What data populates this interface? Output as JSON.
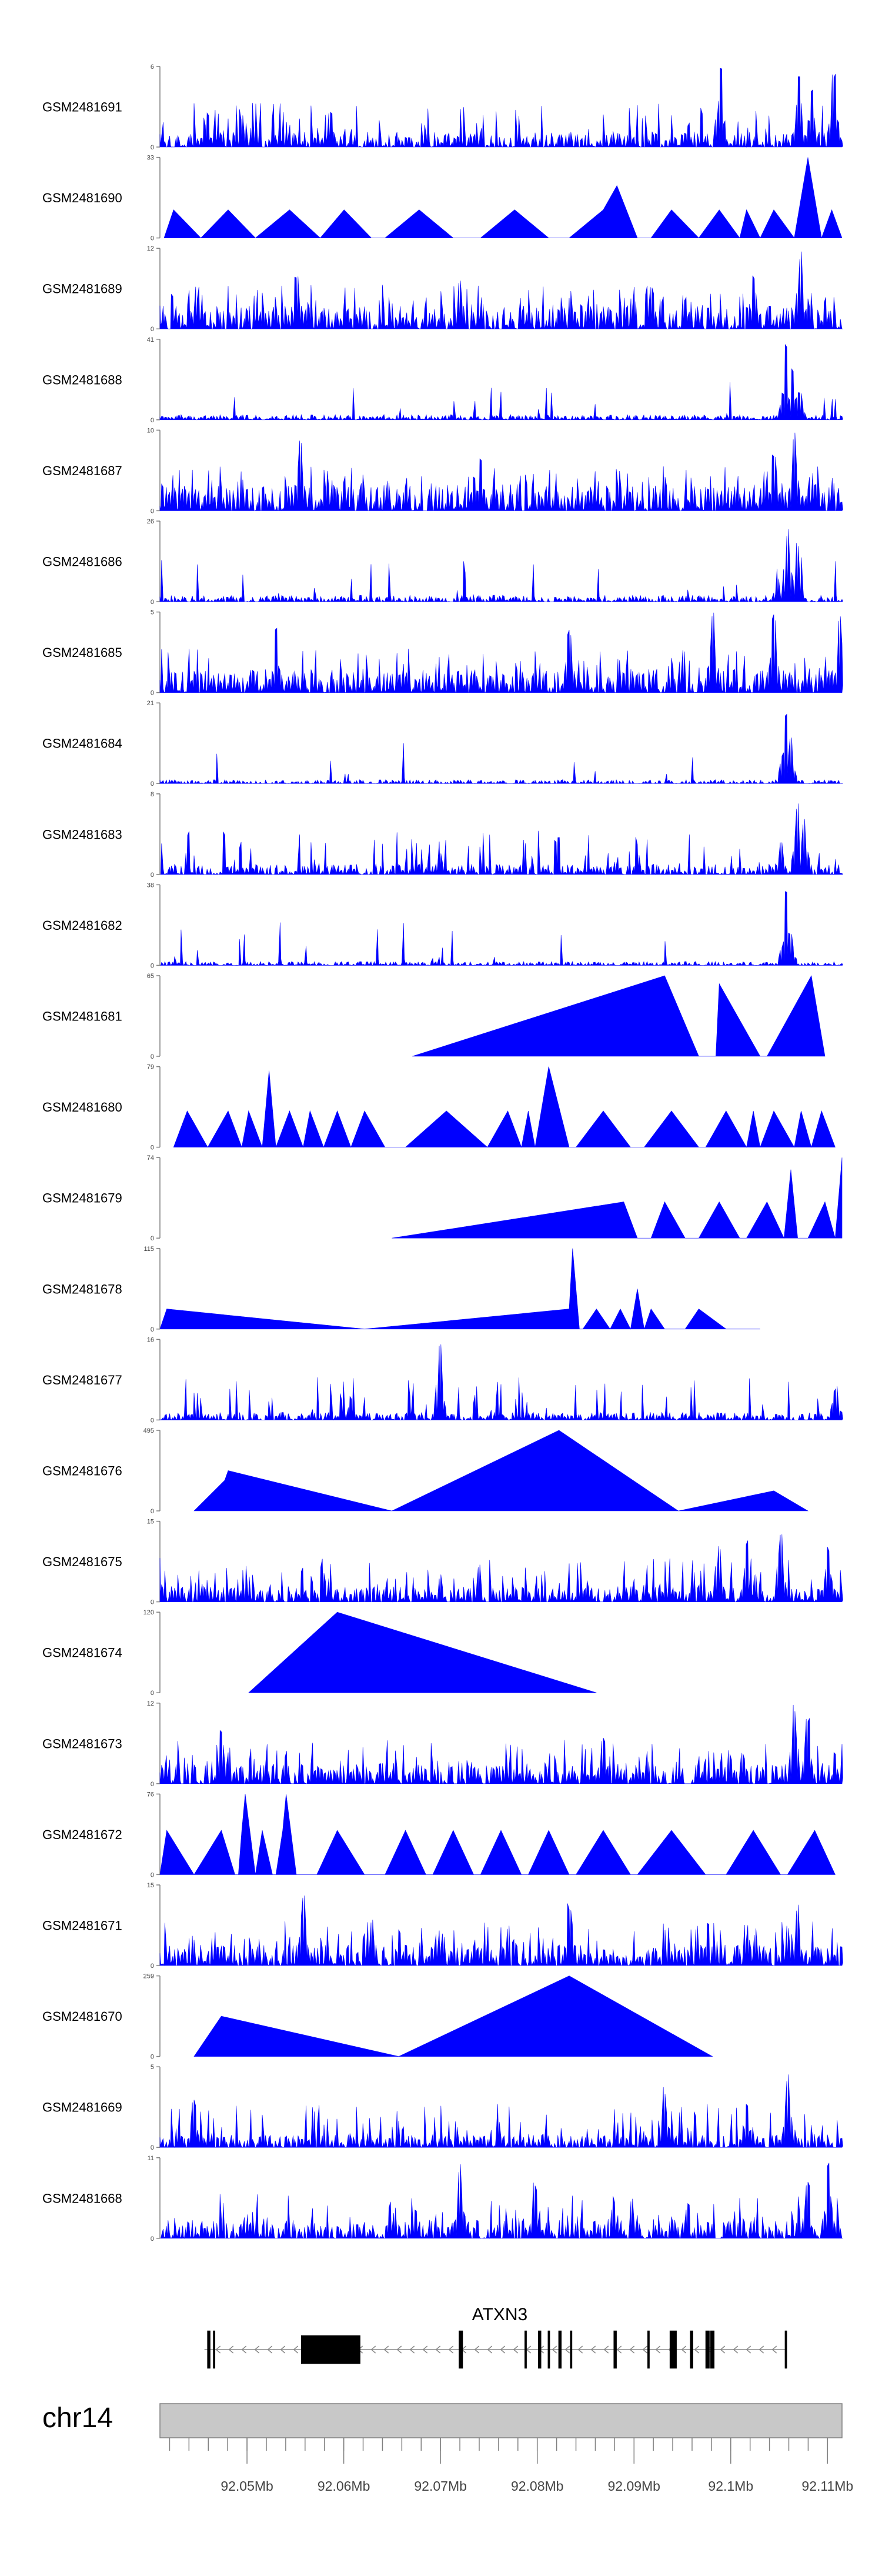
{
  "colors": {
    "track_fill": "#0000ff",
    "axis": "#808080",
    "gene": "#000000",
    "ideogram": "#c8c8c8"
  },
  "chart_data": {
    "type": "area",
    "title": "",
    "chromosome": "chr14",
    "xlabel": "",
    "ylabel": "",
    "xlim_mb": [
      92.041,
      92.1115
    ],
    "x_ticks_mb": [
      92.05,
      92.06,
      92.07,
      92.08,
      92.09,
      92.1,
      92.11
    ],
    "x_tick_labels": [
      "92.05Mb",
      "92.06Mb",
      "92.07Mb",
      "92.08Mb",
      "92.09Mb",
      "92.1Mb",
      "92.11Mb"
    ],
    "tracks": [
      {
        "name": "GSM2481691",
        "ymax_label": "6",
        "ymin_label": "0",
        "ymax": 6,
        "peaks": [
          [
            0.822,
            1.0
          ],
          [
            0.936,
            0.95
          ],
          [
            0.955,
            0.8
          ],
          [
            0.988,
            0.95
          ],
          [
            0.07,
            0.45
          ],
          [
            0.12,
            0.4
          ],
          [
            0.25,
            0.45
          ]
        ]
      },
      {
        "name": "GSM2481690",
        "ymax_label": "33",
        "ymin_label": "0",
        "ymax": 33,
        "peaks": [
          [
            0.95,
            1.0
          ],
          [
            0.673,
            0.65
          ],
          [
            0.86,
            0.35
          ]
        ]
      },
      {
        "name": "GSM2481689",
        "ymax_label": "12",
        "ymin_label": "0",
        "ymax": 12,
        "peaks": [
          [
            0.94,
            1.0
          ],
          [
            0.2,
            0.7
          ],
          [
            0.72,
            0.6
          ],
          [
            0.87,
            0.7
          ],
          [
            0.44,
            0.6
          ]
        ]
      },
      {
        "name": "GSM2481688",
        "ymax_label": "41",
        "ymin_label": "0",
        "ymax": 41,
        "peaks": [
          [
            0.917,
            0.95
          ],
          [
            0.928,
            0.7
          ],
          [
            0.938,
            0.35
          ]
        ]
      },
      {
        "name": "GSM2481687",
        "ymax_label": "10",
        "ymin_label": "0",
        "ymax": 10,
        "peaks": [
          [
            0.93,
            1.0
          ],
          [
            0.205,
            0.9
          ],
          [
            0.47,
            0.7
          ],
          [
            0.9,
            0.7
          ]
        ]
      },
      {
        "name": "GSM2481686",
        "ymax_label": "26",
        "ymin_label": "0",
        "ymax": 26,
        "peaks": [
          [
            0.92,
            0.95
          ],
          [
            0.935,
            0.75
          ],
          [
            0.905,
            0.3
          ]
        ]
      },
      {
        "name": "GSM2481685",
        "ymax_label": "5",
        "ymin_label": "0",
        "ymax": 5,
        "peaks": [
          [
            0.997,
            1.0
          ],
          [
            0.81,
            1.0
          ],
          [
            0.9,
            1.0
          ],
          [
            0.6,
            0.8
          ],
          [
            0.17,
            0.8
          ]
        ]
      },
      {
        "name": "GSM2481684",
        "ymax_label": "21",
        "ymin_label": "0",
        "ymax": 21,
        "peaks": [
          [
            0.917,
            0.95
          ],
          [
            0.925,
            0.6
          ]
        ]
      },
      {
        "name": "GSM2481683",
        "ymax_label": "8",
        "ymin_label": "0",
        "ymax": 8,
        "peaks": [
          [
            0.935,
            0.95
          ],
          [
            0.945,
            0.7
          ],
          [
            0.91,
            0.4
          ],
          [
            0.41,
            0.3
          ]
        ]
      },
      {
        "name": "GSM2481682",
        "ymax_label": "38",
        "ymin_label": "0",
        "ymax": 38,
        "peaks": [
          [
            0.917,
            0.95
          ],
          [
            0.925,
            0.4
          ]
        ]
      },
      {
        "name": "GSM2481681",
        "ymax_label": "65",
        "ymin_label": "0",
        "ymax": 65
      },
      {
        "name": "GSM2481680",
        "ymax_label": "79",
        "ymin_label": "0",
        "ymax": 79
      },
      {
        "name": "GSM2481679",
        "ymax_label": "74",
        "ymin_label": "0",
        "ymax": 74
      },
      {
        "name": "GSM2481678",
        "ymax_label": "115",
        "ymin_label": "0",
        "ymax": 115
      },
      {
        "name": "GSM2481677",
        "ymax_label": "16",
        "ymin_label": "0",
        "ymax": 16,
        "peaks": [
          [
            0.41,
            0.95
          ],
          [
            0.99,
            0.4
          ],
          [
            0.28,
            0.3
          ]
        ]
      },
      {
        "name": "GSM2481676",
        "ymax_label": "495",
        "ymin_label": "0",
        "ymax": 495
      },
      {
        "name": "GSM2481675",
        "ymax_label": "15",
        "ymin_label": "0",
        "ymax": 15,
        "peaks": [
          [
            0.91,
            0.95
          ],
          [
            0.82,
            0.7
          ],
          [
            0.86,
            0.8
          ],
          [
            0.98,
            0.7
          ]
        ]
      },
      {
        "name": "GSM2481674",
        "ymax_label": "120",
        "ymin_label": "0",
        "ymax": 120
      },
      {
        "name": "GSM2481673",
        "ymax_label": "12",
        "ymin_label": "0",
        "ymax": 12,
        "peaks": [
          [
            0.93,
            1.0
          ],
          [
            0.95,
            0.9
          ],
          [
            0.09,
            0.75
          ],
          [
            0.65,
            0.6
          ]
        ]
      },
      {
        "name": "GSM2481672",
        "ymax_label": "76",
        "ymin_label": "0",
        "ymax": 76
      },
      {
        "name": "GSM2481671",
        "ymax_label": "15",
        "ymin_label": "0",
        "ymax": 15,
        "peaks": [
          [
            0.21,
            0.95
          ],
          [
            0.6,
            0.8
          ],
          [
            0.935,
            0.8
          ],
          [
            0.31,
            0.6
          ]
        ]
      },
      {
        "name": "GSM2481670",
        "ymax_label": "259",
        "ymin_label": "0",
        "ymax": 259
      },
      {
        "name": "GSM2481669",
        "ymax_label": "5",
        "ymin_label": "0",
        "ymax": 5,
        "peaks": [
          [
            0.92,
            0.95
          ],
          [
            0.74,
            0.75
          ],
          [
            0.86,
            0.6
          ],
          [
            0.05,
            0.6
          ]
        ]
      },
      {
        "name": "GSM2481668",
        "ymax_label": "11",
        "ymin_label": "0",
        "ymax": 11,
        "peaks": [
          [
            0.44,
            0.95
          ],
          [
            0.98,
            0.95
          ],
          [
            0.95,
            0.75
          ],
          [
            0.55,
            0.7
          ]
        ]
      }
    ],
    "gene": {
      "name": "ATXN3",
      "strand": "-",
      "start_mb": 92.0456,
      "end_mb": 92.1058,
      "exons_mb": [
        [
          92.0459,
          92.0462
        ],
        [
          92.0465,
          92.0467
        ],
        [
          92.0556,
          92.0617
        ],
        [
          92.0719,
          92.0723
        ],
        [
          92.0787,
          92.0789
        ],
        [
          92.0801,
          92.0804
        ],
        [
          92.0811,
          92.0813
        ],
        [
          92.0822,
          92.0825
        ],
        [
          92.0834,
          92.0836
        ],
        [
          92.0879,
          92.0882
        ],
        [
          92.0914,
          92.0916
        ],
        [
          92.0937,
          92.0944
        ],
        [
          92.0958,
          92.0961
        ],
        [
          92.0974,
          92.0978
        ],
        [
          92.0979,
          92.0983
        ],
        [
          92.1056,
          92.1058
        ]
      ]
    }
  }
}
